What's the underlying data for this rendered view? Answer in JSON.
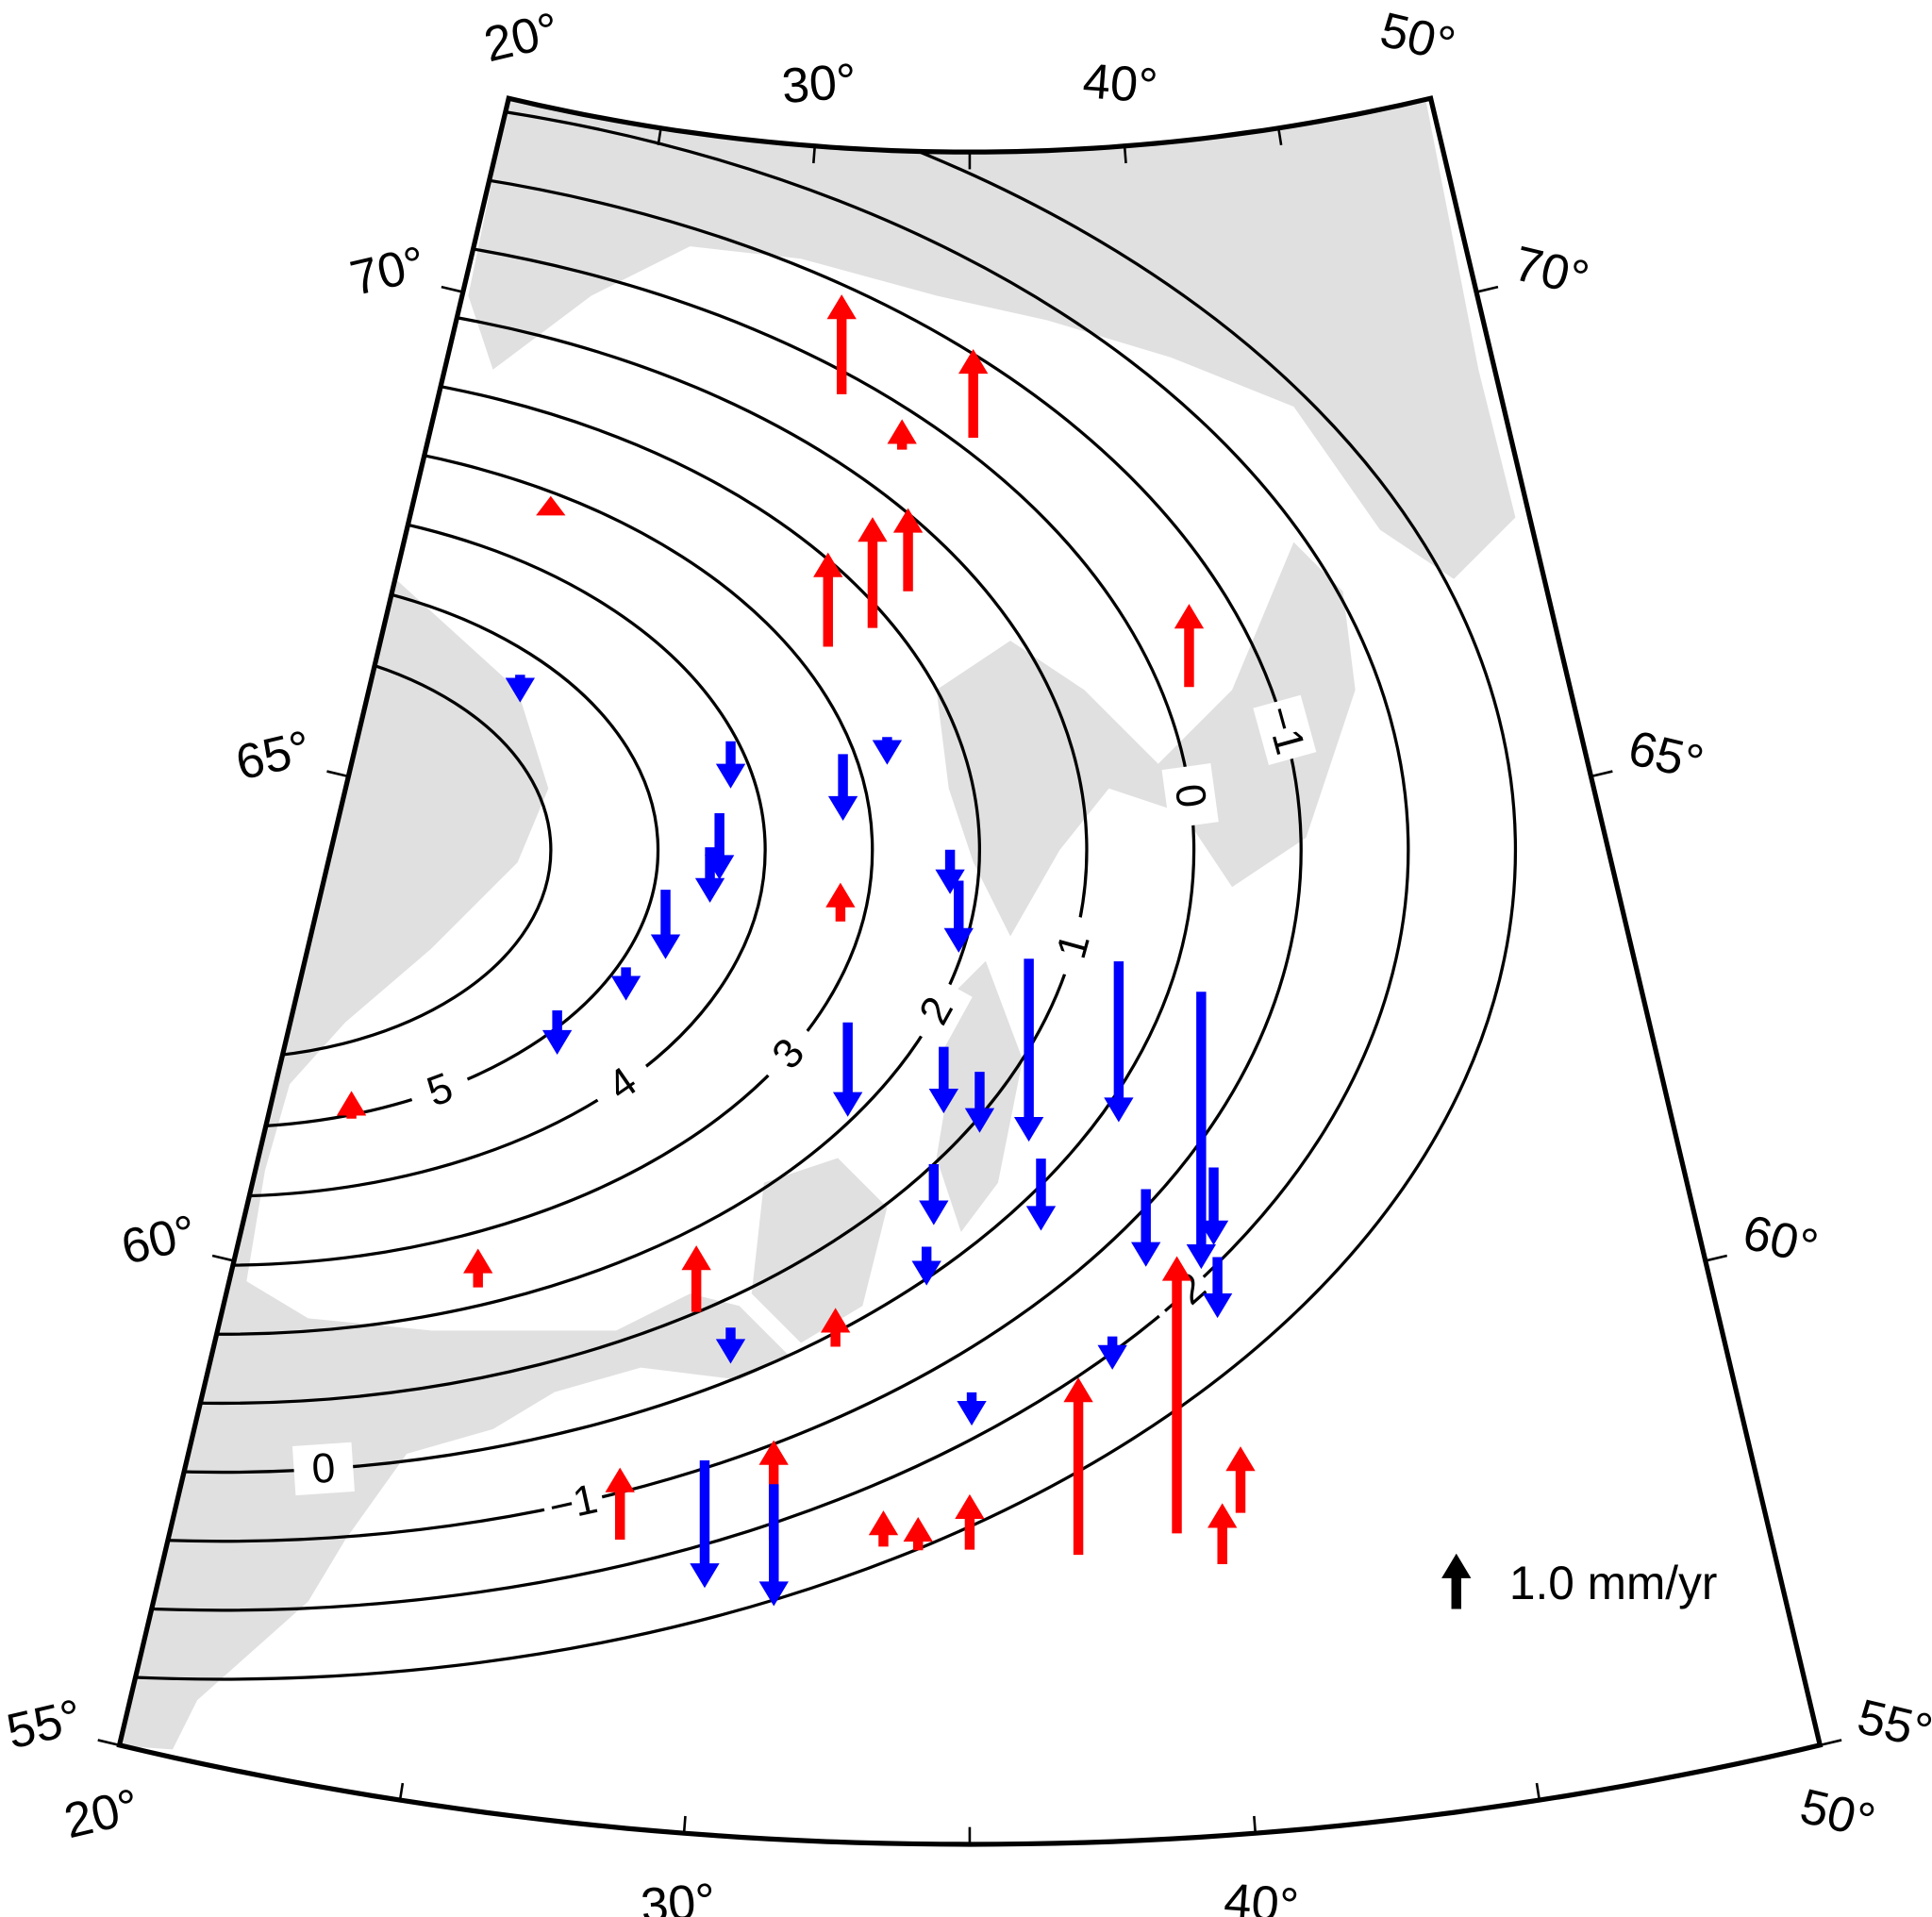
{
  "map": {
    "type": "map",
    "lonlim": [
      20,
      50
    ],
    "latlim": [
      55,
      72
    ],
    "lon_ticks": [
      {
        "value": 20,
        "label": "20°"
      },
      {
        "value": 30,
        "label": "30°"
      },
      {
        "value": 40,
        "label": "40°"
      },
      {
        "value": 50,
        "label": "50°"
      }
    ],
    "lon_minor_ticks": [
      25,
      35,
      45
    ],
    "lat_ticks": [
      {
        "value": 55,
        "label": "55°"
      },
      {
        "value": 60,
        "label": "60°"
      },
      {
        "value": 65,
        "label": "65°"
      },
      {
        "value": 70,
        "label": "70°"
      }
    ],
    "contours": [
      {
        "level": 6
      },
      {
        "level": 5,
        "labels": [
          "5"
        ]
      },
      {
        "level": 4,
        "labels": [
          "4"
        ]
      },
      {
        "level": 3,
        "labels": [
          "3"
        ]
      },
      {
        "level": 2,
        "labels": [
          "2"
        ]
      },
      {
        "level": 1,
        "labels": [
          "1"
        ]
      },
      {
        "level": 0,
        "labels": [
          "0",
          "0"
        ]
      },
      {
        "level": -1,
        "labels": [
          "−1",
          "−1"
        ]
      },
      {
        "level": -2,
        "labels": [
          "−2"
        ]
      },
      {
        "level": -3
      }
    ],
    "colors": {
      "uplift": "#ff0000",
      "subsidence": "#0000ff",
      "legend": "#000000",
      "water": "#e0e0e0"
    },
    "stations": {
      "lon": [
        31.32,
        35.1,
        33.37,
        32.47,
        31.34,
        40.57,
        31.99,
        38.95,
        37.06,
        31.27,
        28.36,
        39.77,
        40.19,
        35.0,
        29.43,
        24.96,
        32.29,
        21.74,
        23.68,
        33.1,
        34.02,
        33.36,
        40.25,
        38.42,
        36.36,
        32.26,
        31.21,
        29.84,
        40.21,
        40.14,
        38.74,
        36.53,
        34.23,
        35.22,
        34.42,
        34.74,
        34.53,
        31.86,
        28.95,
        28.8,
        29.06,
        27.86,
        27.16,
        25.75,
        37.89,
        34.1,
        30.15,
        35.04,
        23.62,
        32.94
      ],
      "lat": [
        69.53,
        69.13,
        67.58,
        67.2,
        66.99,
        66.53,
        64.24,
        58.06,
        57.89,
        58.0,
        57.88,
        57.72,
        58.22,
        57.96,
        60.23,
        60.21,
        59.97,
        61.65,
        67.98,
        69.0,
        57.95,
        57.98,
        63.47,
        63.83,
        63.89,
        63.23,
        58.56,
        58.75,
        61.7,
        60.8,
        61.53,
        61.88,
        61.83,
        62.76,
        63.01,
        64.68,
        64.99,
        65.92,
        65.24,
        64.89,
        65.97,
        64.42,
        63.6,
        63.08,
        60.07,
        61.0,
        60.1,
        59.54,
        66.35,
        66.11
      ],
      "values": [
        1.8,
        1.6,
        1.5,
        2.0,
        1.7,
        1.5,
        0.7,
        5.0,
        3.2,
        1.8,
        1.3,
        1.1,
        1.2,
        1.0,
        1.2,
        0.7,
        0.7,
        0.5,
        0.35,
        0.55,
        0.6,
        0.65,
        -5.0,
        -2.9,
        -3.3,
        -1.7,
        -2.2,
        -2.3,
        -1.4,
        -1.1,
        -1.4,
        -1.3,
        -1.1,
        -1.1,
        -1.2,
        -1.3,
        -0.8,
        -1.2,
        -1.2,
        -1.0,
        -0.85,
        -1.25,
        -0.6,
        -0.8,
        -0.6,
        -0.7,
        -0.65,
        -0.6,
        -0.5,
        -0.5
      ]
    },
    "legend": {
      "value": 1.0,
      "label": "1.0 mm/yr"
    }
  }
}
